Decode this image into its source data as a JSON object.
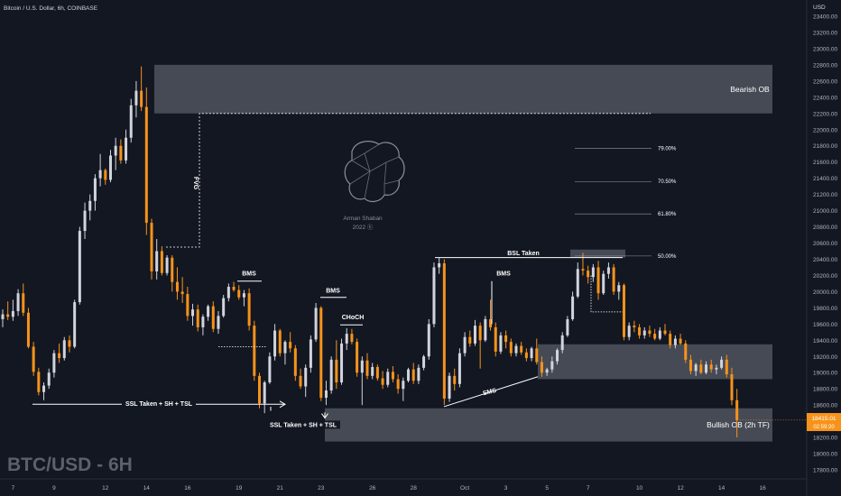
{
  "header": {
    "symbol_line": "Bitcoin / U.S. Dollar, 6h, COINBASE",
    "currency": "USD"
  },
  "watermark": "BTC/USD - 6H",
  "logo": {
    "line1": "Arman Shaban",
    "line2": "2022 ⓗ"
  },
  "price_marker": {
    "price": "18415.01",
    "countdown": "02:59:20",
    "color": "#f7931a"
  },
  "colors": {
    "background": "#131722",
    "up_candle": "#d1d4dc",
    "down_candle": "#f7931a",
    "zone_fill": "#50535e",
    "text": "#b2b5be"
  },
  "chart_data": {
    "type": "candlestick",
    "title": "Bitcoin / U.S. Dollar, 6h, COINBASE",
    "y_axis": {
      "unit": "USD",
      "range": [
        17700,
        23400
      ],
      "ticks": [
        23400,
        23200,
        23000,
        22800,
        22600,
        22400,
        22200,
        22000,
        21800,
        21600,
        21400,
        21200,
        21000,
        20800,
        20600,
        20400,
        20200,
        20000,
        19800,
        19600,
        19400,
        19200,
        19000,
        18800,
        18600,
        18400,
        18200,
        18000,
        17800
      ],
      "tick_labels": [
        "23400.00",
        "23200.00",
        "23000.00",
        "22800.00",
        "22600.00",
        "22400.00",
        "22200.00",
        "22000.00",
        "21800.00",
        "21600.00",
        "21400.00",
        "21200.00",
        "21000.00",
        "20800.00",
        "20600.00",
        "20400.00",
        "20200.00",
        "20000.00",
        "19800.00",
        "19600.00",
        "19400.00",
        "19200.00",
        "19000.00",
        "18800.00",
        "18600.00",
        "18400.00",
        "18200.00",
        "18000.00",
        "17800.00"
      ]
    },
    "x_axis": {
      "labels": [
        "7",
        "9",
        "12",
        "14",
        "16",
        "19",
        "21",
        "23",
        "26",
        "28",
        "Oct",
        "3",
        "5",
        "7",
        "10",
        "12",
        "14",
        "16"
      ],
      "label_bar_index": [
        2,
        10,
        20,
        28,
        36,
        46,
        54,
        62,
        72,
        80,
        90,
        98,
        106,
        114,
        124,
        132,
        140,
        148
      ]
    },
    "candles": [
      [
        19660,
        19780,
        19560,
        19720
      ],
      [
        19720,
        19880,
        19650,
        19690
      ],
      [
        19690,
        19900,
        19640,
        19760
      ],
      [
        19760,
        20030,
        19700,
        19980
      ],
      [
        19980,
        20100,
        19700,
        19740
      ],
      [
        19740,
        19800,
        19300,
        19320
      ],
      [
        19320,
        19380,
        18960,
        19010
      ],
      [
        19010,
        19060,
        18720,
        18760
      ],
      [
        18760,
        18880,
        18660,
        18840
      ],
      [
        18840,
        19050,
        18800,
        19000
      ],
      [
        19000,
        19280,
        18940,
        19240
      ],
      [
        19240,
        19360,
        19120,
        19180
      ],
      [
        19180,
        19440,
        19150,
        19400
      ],
      [
        19400,
        19460,
        19250,
        19320
      ],
      [
        19320,
        19900,
        19300,
        19870
      ],
      [
        19870,
        20800,
        19840,
        20750
      ],
      [
        20750,
        21100,
        20650,
        21000
      ],
      [
        21000,
        21200,
        20880,
        21120
      ],
      [
        21120,
        21450,
        21000,
        21400
      ],
      [
        21400,
        21700,
        21300,
        21500
      ],
      [
        21500,
        21520,
        21320,
        21380
      ],
      [
        21380,
        21750,
        21350,
        21680
      ],
      [
        21680,
        21900,
        21500,
        21800
      ],
      [
        21800,
        21880,
        21580,
        21620
      ],
      [
        21620,
        22000,
        21580,
        21900
      ],
      [
        21900,
        22380,
        21840,
        22300
      ],
      [
        22300,
        22600,
        22150,
        22480
      ],
      [
        22480,
        22780,
        22230,
        22280
      ],
      [
        22280,
        22520,
        20700,
        20850
      ],
      [
        20850,
        20900,
        20150,
        20250
      ],
      [
        20250,
        20650,
        20150,
        20500
      ],
      [
        20500,
        20560,
        20200,
        20230
      ],
      [
        20230,
        20450,
        20200,
        20420
      ],
      [
        20420,
        20450,
        20000,
        20120
      ],
      [
        20120,
        20300,
        19900,
        20000
      ],
      [
        20000,
        20180,
        19860,
        19970
      ],
      [
        19970,
        20060,
        19640,
        19700
      ],
      [
        19700,
        19850,
        19580,
        19780
      ],
      [
        19780,
        19840,
        19510,
        19560
      ],
      [
        19560,
        19720,
        19460,
        19690
      ],
      [
        19690,
        19840,
        19640,
        19820
      ],
      [
        19820,
        19880,
        19500,
        19540
      ],
      [
        19540,
        19760,
        19480,
        19700
      ],
      [
        19700,
        19960,
        19680,
        19920
      ],
      [
        19920,
        20100,
        19880,
        20060
      ],
      [
        20060,
        20120,
        20000,
        20020
      ],
      [
        20020,
        20080,
        19900,
        19930
      ],
      [
        19930,
        20020,
        19820,
        19980
      ],
      [
        19980,
        20040,
        19520,
        19580
      ],
      [
        19580,
        19640,
        18900,
        18960
      ],
      [
        18960,
        19000,
        18560,
        18620
      ],
      [
        18620,
        18900,
        18500,
        18880
      ],
      [
        18880,
        19250,
        18860,
        19200
      ],
      [
        19200,
        19600,
        19150,
        19520
      ],
      [
        19520,
        19540,
        19200,
        19240
      ],
      [
        19240,
        19400,
        19100,
        19380
      ],
      [
        19380,
        19500,
        19250,
        19300
      ],
      [
        19300,
        19340,
        18900,
        18960
      ],
      [
        18960,
        19050,
        18800,
        18830
      ],
      [
        18830,
        19100,
        18700,
        19060
      ],
      [
        19060,
        19460,
        19000,
        19410
      ],
      [
        19410,
        19860,
        19380,
        19800
      ],
      [
        19800,
        19820,
        18650,
        18690
      ],
      [
        18690,
        18900,
        18600,
        18780
      ],
      [
        18780,
        19200,
        18740,
        19160
      ],
      [
        19160,
        19400,
        18800,
        18880
      ],
      [
        18880,
        19420,
        18850,
        19360
      ],
      [
        19360,
        19550,
        19280,
        19480
      ],
      [
        19480,
        19540,
        19350,
        19380
      ],
      [
        19380,
        19420,
        18950,
        19000
      ],
      [
        19000,
        19200,
        18600,
        19150
      ],
      [
        19150,
        19240,
        18920,
        18960
      ],
      [
        18960,
        19120,
        18920,
        19070
      ],
      [
        19070,
        19100,
        18900,
        18930
      ],
      [
        18930,
        19020,
        18800,
        18850
      ],
      [
        18850,
        19050,
        18820,
        19010
      ],
      [
        19010,
        19080,
        18880,
        18920
      ],
      [
        18920,
        18980,
        18740,
        18800
      ],
      [
        18800,
        18940,
        18650,
        18900
      ],
      [
        18900,
        19060,
        18880,
        19040
      ],
      [
        19040,
        19120,
        18860,
        18900
      ],
      [
        18900,
        19100,
        18860,
        19060
      ],
      [
        19060,
        19220,
        19030,
        19200
      ],
      [
        19200,
        19660,
        19160,
        19600
      ],
      [
        19600,
        20360,
        19560,
        20300
      ],
      [
        20300,
        20420,
        20220,
        20350
      ],
      [
        20350,
        20400,
        18600,
        18680
      ],
      [
        18680,
        19000,
        18640,
        18960
      ],
      [
        18960,
        19050,
        18780,
        18860
      ],
      [
        18860,
        19300,
        18820,
        19240
      ],
      [
        19240,
        19500,
        19200,
        19440
      ],
      [
        19440,
        19520,
        19320,
        19360
      ],
      [
        19360,
        19650,
        19330,
        19580
      ],
      [
        19580,
        19620,
        19050,
        19400
      ],
      [
        19400,
        19700,
        19380,
        19660
      ],
      [
        19660,
        19900,
        19520,
        19560
      ],
      [
        19560,
        19620,
        19200,
        19260
      ],
      [
        19260,
        19500,
        19230,
        19460
      ],
      [
        19460,
        19520,
        19300,
        19380
      ],
      [
        19380,
        19420,
        19200,
        19240
      ],
      [
        19240,
        19360,
        19200,
        19330
      ],
      [
        19330,
        19380,
        19220,
        19250
      ],
      [
        19250,
        19300,
        19140,
        19180
      ],
      [
        19180,
        19320,
        19140,
        19300
      ],
      [
        19300,
        19420,
        19100,
        19130
      ],
      [
        19130,
        19200,
        18950,
        19000
      ],
      [
        19000,
        19060,
        18960,
        19040
      ],
      [
        19040,
        19200,
        19000,
        19140
      ],
      [
        19140,
        19300,
        19100,
        19280
      ],
      [
        19280,
        19500,
        19240,
        19460
      ],
      [
        19460,
        19700,
        19440,
        19660
      ],
      [
        19660,
        20000,
        19640,
        19940
      ],
      [
        19940,
        20360,
        19920,
        20280
      ],
      [
        20280,
        20480,
        20200,
        20260
      ],
      [
        20260,
        20320,
        20100,
        20180
      ],
      [
        20180,
        20340,
        20120,
        20300
      ],
      [
        20300,
        20380,
        19900,
        19980
      ],
      [
        19980,
        20260,
        19960,
        20220
      ],
      [
        20220,
        20360,
        20160,
        20300
      ],
      [
        20300,
        20340,
        19960,
        20000
      ],
      [
        20000,
        20120,
        19900,
        20080
      ],
      [
        20080,
        20100,
        19400,
        19440
      ],
      [
        19440,
        19620,
        19400,
        19580
      ],
      [
        19580,
        19640,
        19500,
        19560
      ],
      [
        19560,
        19600,
        19420,
        19460
      ],
      [
        19460,
        19560,
        19420,
        19520
      ],
      [
        19520,
        19580,
        19440,
        19480
      ],
      [
        19480,
        19540,
        19400,
        19420
      ],
      [
        19420,
        19560,
        19400,
        19520
      ],
      [
        19520,
        19600,
        19460,
        19480
      ],
      [
        19480,
        19520,
        19300,
        19340
      ],
      [
        19340,
        19460,
        19300,
        19420
      ],
      [
        19420,
        19480,
        19340,
        19360
      ],
      [
        19360,
        19400,
        19120,
        19160
      ],
      [
        19160,
        19220,
        18980,
        19020
      ],
      [
        19020,
        19120,
        18960,
        19100
      ],
      [
        19100,
        19160,
        18980,
        19000
      ],
      [
        19000,
        19140,
        18980,
        19100
      ],
      [
        19100,
        19160,
        19000,
        19040
      ],
      [
        19040,
        19100,
        18980,
        19060
      ],
      [
        19060,
        19200,
        19040,
        19160
      ],
      [
        19160,
        19220,
        18940,
        18980
      ],
      [
        18980,
        19060,
        18600,
        18660
      ],
      [
        18660,
        18800,
        18200,
        18415
      ]
    ],
    "zones": [
      {
        "label": "Bearish OB",
        "top": 22800,
        "bottom": 22200
      },
      {
        "label": "",
        "top": 19350,
        "bottom": 18920
      },
      {
        "label": "Bullish OB (2h TF)",
        "top": 18560,
        "bottom": 18150
      },
      {
        "label": "",
        "top": 20520,
        "bottom": 20420
      }
    ],
    "fib_levels": [
      {
        "label": "79.00%",
        "price": 21770
      },
      {
        "label": "70.50%",
        "price": 21360
      },
      {
        "label": "61.80%",
        "price": 20960
      },
      {
        "label": "50.00%",
        "price": 20440
      }
    ],
    "annotations": [
      {
        "text": "FVG"
      },
      {
        "text": "BMS"
      },
      {
        "text": "BMS"
      },
      {
        "text": "CHoCH"
      },
      {
        "text": "BSL Taken"
      },
      {
        "text": "BMS"
      },
      {
        "text": "SMS"
      },
      {
        "text": "SSL Taken + SH + TSL"
      },
      {
        "text": "SSL Taken + SH + TSL"
      }
    ]
  }
}
